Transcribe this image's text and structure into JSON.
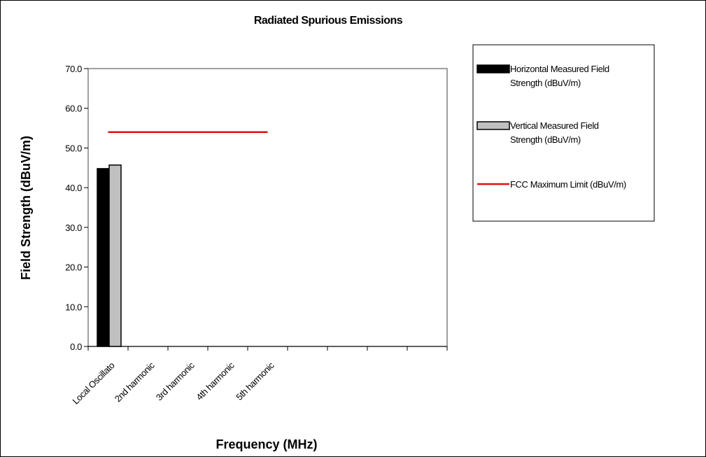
{
  "chart_data": {
    "type": "bar",
    "title": "Radiated Spurious Emissions",
    "xlabel": "Frequency (MHz)",
    "ylabel": "Field Strength (dBuV/m)",
    "ylim": [
      0,
      70
    ],
    "yticks": [
      "0.0",
      "10.0",
      "20.0",
      "30.0",
      "40.0",
      "50.0",
      "60.0",
      "70.0"
    ],
    "category_slots": 9,
    "categories": [
      "Local Oscillato",
      "2nd harmonic",
      "3rd harmonic",
      "4th harmonic",
      "5th harmonic"
    ],
    "grid": false,
    "legend_position": "right",
    "series": [
      {
        "name": "Horizontal Measured Field Strength (dBuV/m)",
        "kind": "bar",
        "color": "#000000",
        "values": [
          44.8,
          null,
          null,
          null,
          null
        ]
      },
      {
        "name": "Vertical Measured Field Strength (dBuV/m)",
        "kind": "bar",
        "color": "#c0c0c0",
        "values": [
          45.7,
          null,
          null,
          null,
          null
        ]
      },
      {
        "name": "FCC Maximum Limit (dBuV/m)",
        "kind": "line",
        "color": "#e01010",
        "values": [
          54.0,
          54.0,
          54.0,
          54.0,
          54.0
        ]
      }
    ],
    "legend_lines": [
      [
        "Horizontal Measured Field",
        "Strength (dBuV/m)"
      ],
      [
        "Vertical Measured Field",
        "Strength (dBuV/m)"
      ],
      [
        "FCC Maximum Limit (dBuV/m)"
      ]
    ]
  }
}
